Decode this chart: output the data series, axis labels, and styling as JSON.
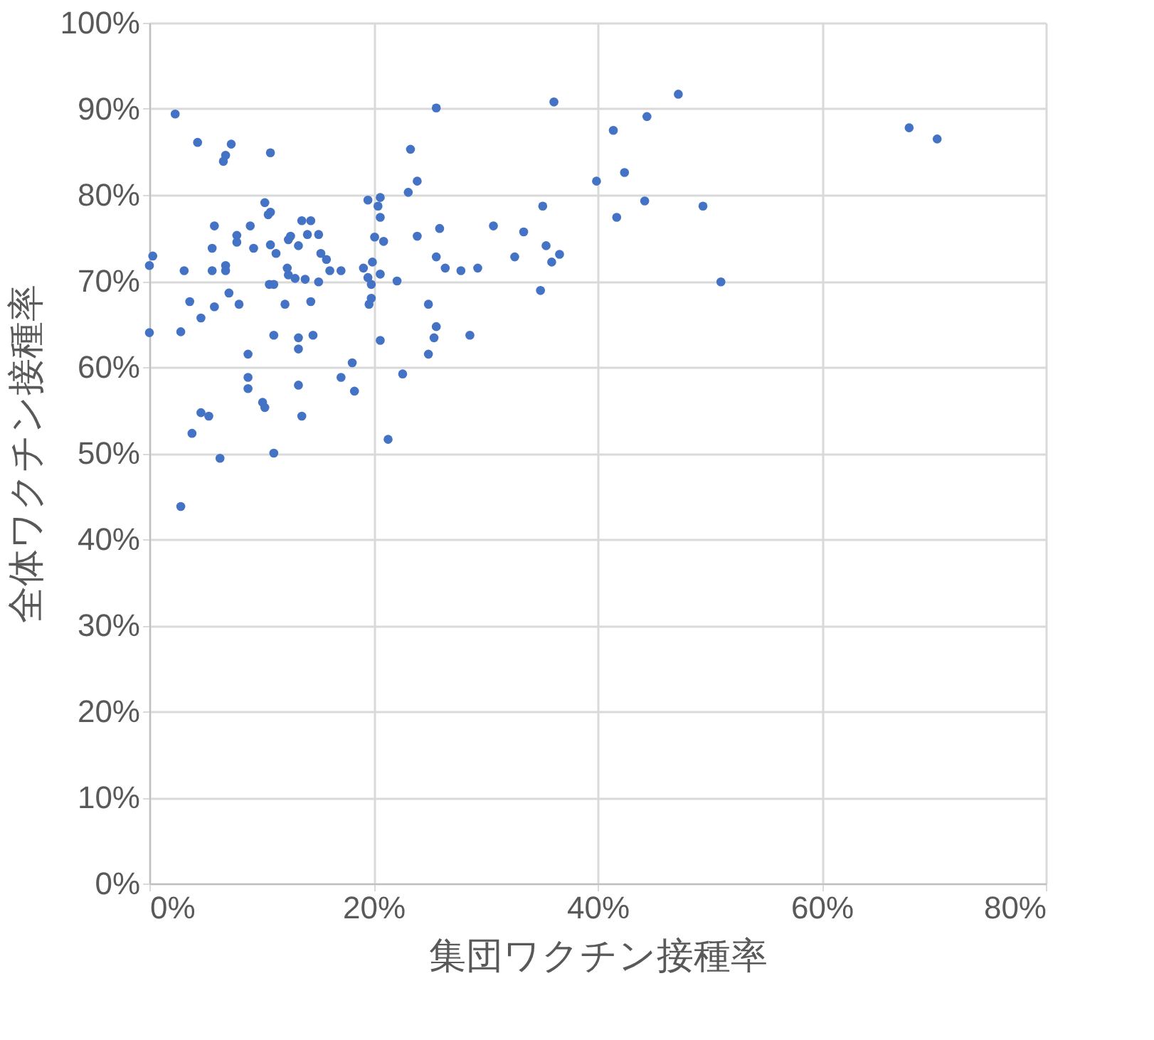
{
  "chart_data": {
    "type": "scatter",
    "xlabel": "集団ワクチン接種率",
    "ylabel": "全体ワクチン接種率",
    "marker": "circle",
    "grid": true,
    "xlim": [
      0,
      80
    ],
    "ylim": [
      0,
      100
    ],
    "xticks": [
      {
        "value": 0,
        "label": "0%"
      },
      {
        "value": 20,
        "label": "20%"
      },
      {
        "value": 40,
        "label": "40%"
      },
      {
        "value": 60,
        "label": "60%"
      },
      {
        "value": 80,
        "label": "80%"
      }
    ],
    "yticks": [
      {
        "value": 0,
        "label": "0%"
      },
      {
        "value": 10,
        "label": "10%"
      },
      {
        "value": 20,
        "label": "20%"
      },
      {
        "value": 30,
        "label": "30%"
      },
      {
        "value": 40,
        "label": "40%"
      },
      {
        "value": 50,
        "label": "50%"
      },
      {
        "value": 60,
        "label": "60%"
      },
      {
        "value": 70,
        "label": "70%"
      },
      {
        "value": 80,
        "label": "80%"
      },
      {
        "value": 90,
        "label": "90%"
      },
      {
        "value": 100,
        "label": "100%"
      }
    ],
    "series": [
      {
        "color": "#4472c4",
        "x": [
          0,
          2.8,
          3.6,
          4.6,
          5.8,
          7.1,
          8.0,
          8.8,
          8.8,
          8.8,
          11.1,
          12.1,
          13.3,
          13.3,
          13.3,
          14.6,
          14.4,
          4.6,
          5.3,
          3.8,
          6.3,
          2.8,
          10.1,
          10.3,
          11.1,
          13.6,
          18.1,
          17.1,
          18.3,
          20.6,
          21.3,
          19.6,
          19.8,
          19.8,
          19.5,
          10.7,
          11.1,
          12.4,
          13.0,
          13.9,
          15.1,
          20.6,
          3.1,
          5.6,
          6.8,
          16.1,
          17.1,
          2.3,
          4.3,
          7.3,
          6.8,
          6.6,
          10.8,
          10.3,
          10.8,
          10.6,
          5.8,
          9.0,
          7.8,
          7.8,
          5.6,
          9.3,
          0.3,
          0,
          6.8,
          10.8,
          11.3,
          13.6,
          14.4,
          14.1,
          15.1,
          12.4,
          12.6,
          13.3,
          15.3,
          15.8,
          12.3,
          19.5,
          20.6,
          20.4,
          20.6,
          20.1,
          20.9,
          19.1,
          19.9,
          25.6,
          36.1,
          41.4,
          23.3,
          23.9,
          23.1,
          39.9,
          35.1,
          41.7,
          25.9,
          30.7,
          33.4,
          23.9,
          35.4,
          36.6,
          35.9,
          32.6,
          25.6,
          26.4,
          27.8,
          29.3,
          22.1,
          34.9,
          24.9,
          25.6,
          25.4,
          28.6,
          24.9,
          22.6,
          47.2,
          44.4,
          42.4,
          44.2,
          49.4,
          51.0,
          67.8,
          70.3
        ],
        "values": [
          64.0,
          64.1,
          67.6,
          65.7,
          67.0,
          68.6,
          67.3,
          61.5,
          58.8,
          57.5,
          63.7,
          67.3,
          63.4,
          62.1,
          57.9,
          63.7,
          67.6,
          54.7,
          54.3,
          52.3,
          49.4,
          43.8,
          55.9,
          55.3,
          50.0,
          54.3,
          60.5,
          58.8,
          57.2,
          63.1,
          51.6,
          67.3,
          68.0,
          69.6,
          70.4,
          69.6,
          69.6,
          70.7,
          70.3,
          70.2,
          69.9,
          70.8,
          71.2,
          71.2,
          71.2,
          71.2,
          71.2,
          89.4,
          86.1,
          85.9,
          84.6,
          83.9,
          84.9,
          79.1,
          78.0,
          77.7,
          76.4,
          76.4,
          75.3,
          74.5,
          73.8,
          73.8,
          72.9,
          71.8,
          71.8,
          74.2,
          73.2,
          77.0,
          77.0,
          75.4,
          75.4,
          74.8,
          75.2,
          74.1,
          73.2,
          72.5,
          71.5,
          79.4,
          79.7,
          78.7,
          77.4,
          75.1,
          74.6,
          71.5,
          72.2,
          90.1,
          90.8,
          87.5,
          85.3,
          81.6,
          80.3,
          81.6,
          78.7,
          77.4,
          76.1,
          76.4,
          75.7,
          75.2,
          74.1,
          73.1,
          72.2,
          72.8,
          72.8,
          71.5,
          71.2,
          71.5,
          70.0,
          68.9,
          67.3,
          64.7,
          63.4,
          63.7,
          61.5,
          59.2,
          91.7,
          89.1,
          82.6,
          79.3,
          78.7,
          69.9,
          87.8,
          86.5
        ]
      }
    ]
  }
}
